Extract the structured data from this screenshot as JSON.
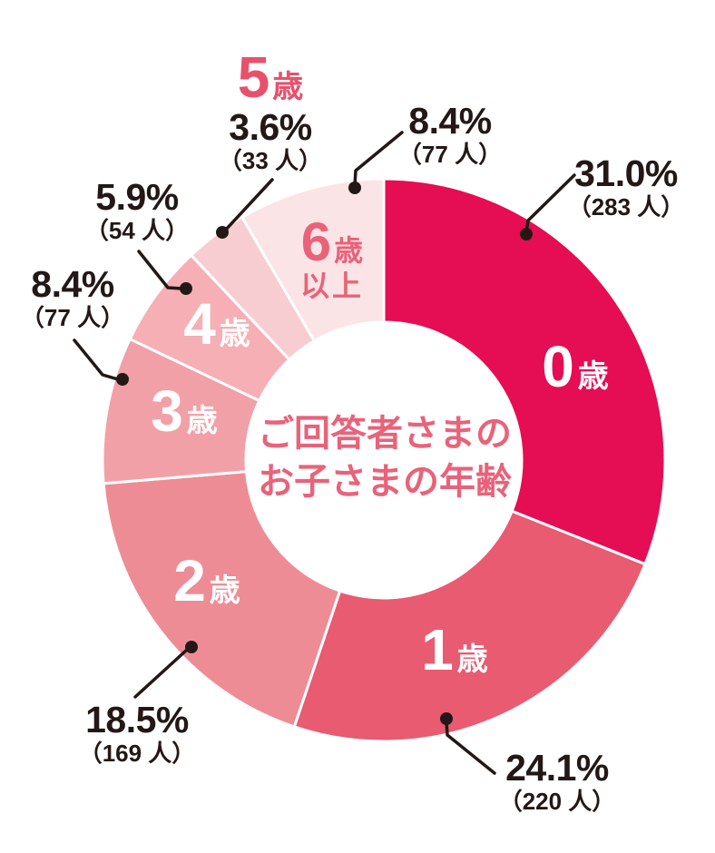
{
  "chart_data": {
    "type": "pie",
    "variant": "donut",
    "title": "ご回答者さまのお子さまの年齢",
    "title_lines": [
      "ご回答者さまの",
      "お子さまの年齢"
    ],
    "start_angle_deg": 0,
    "direction": "clockwise",
    "unit": "人",
    "slices": [
      {
        "label": "0歳",
        "digit": "0",
        "suffix": "歳",
        "pct": 31.0,
        "count": 283,
        "pct_label": "31.0%",
        "count_label": "（283 人）",
        "color": "#E50D53",
        "label_style": "inside-white"
      },
      {
        "label": "1歳",
        "digit": "1",
        "suffix": "歳",
        "pct": 24.1,
        "count": 220,
        "pct_label": "24.1%",
        "count_label": "（220 人）",
        "color": "#E85B71",
        "label_style": "inside-white"
      },
      {
        "label": "2歳",
        "digit": "2",
        "suffix": "歳",
        "pct": 18.5,
        "count": 169,
        "pct_label": "18.5%",
        "count_label": "（169 人）",
        "color": "#EE8C96",
        "label_style": "inside-white"
      },
      {
        "label": "3歳",
        "digit": "3",
        "suffix": "歳",
        "pct": 8.4,
        "count": 77,
        "pct_label": "8.4%",
        "count_label": "（77 人）",
        "color": "#F2A0A7",
        "label_style": "inside-white"
      },
      {
        "label": "4歳",
        "digit": "4",
        "suffix": "歳",
        "pct": 5.9,
        "count": 54,
        "pct_label": "5.9%",
        "count_label": "（54 人）",
        "color": "#F5AFB5",
        "label_style": "inside-white"
      },
      {
        "label": "5歳",
        "digit": "5",
        "suffix": "歳",
        "pct": 3.6,
        "count": 33,
        "pct_label": "3.6%",
        "count_label": "（33 人）",
        "color": "#F8CDD1",
        "label_style": "outside-pink"
      },
      {
        "label": "6歳以上",
        "digit": "6",
        "suffix": "歳",
        "suffix2": "以上",
        "pct": 8.4,
        "count": 77,
        "pct_label": "8.4%",
        "count_label": "（77 人）",
        "color": "#FBE4E6",
        "label_style": "inside-pink"
      }
    ],
    "colors": {
      "title_pink": "#E8637A",
      "outside_age_pink": "#E7516C",
      "callout_text": "#231815",
      "leader_line": "#231815",
      "slice_gap": "#FFFFFF",
      "background": "#FFFFFF"
    }
  }
}
